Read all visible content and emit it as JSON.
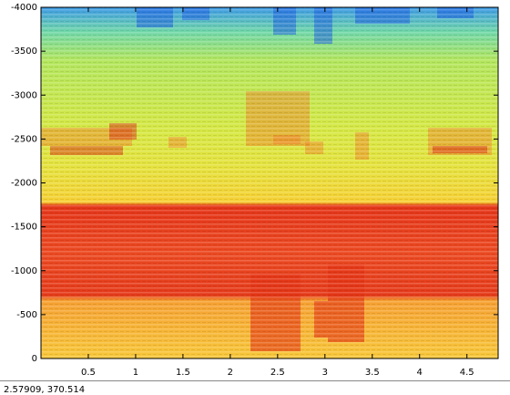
{
  "chart_data": {
    "type": "heatmap",
    "xlim": [
      0,
      4.83
    ],
    "ylim": [
      0,
      -4000
    ],
    "xticks": [
      0.5,
      1,
      1.5,
      2,
      2.5,
      3,
      3.5,
      4,
      4.5
    ],
    "yticks": [
      0,
      -500,
      -1000,
      -1500,
      -2000,
      -2500,
      -3000,
      -3500,
      -4000
    ]
  },
  "status": "2.57909,  370.514"
}
